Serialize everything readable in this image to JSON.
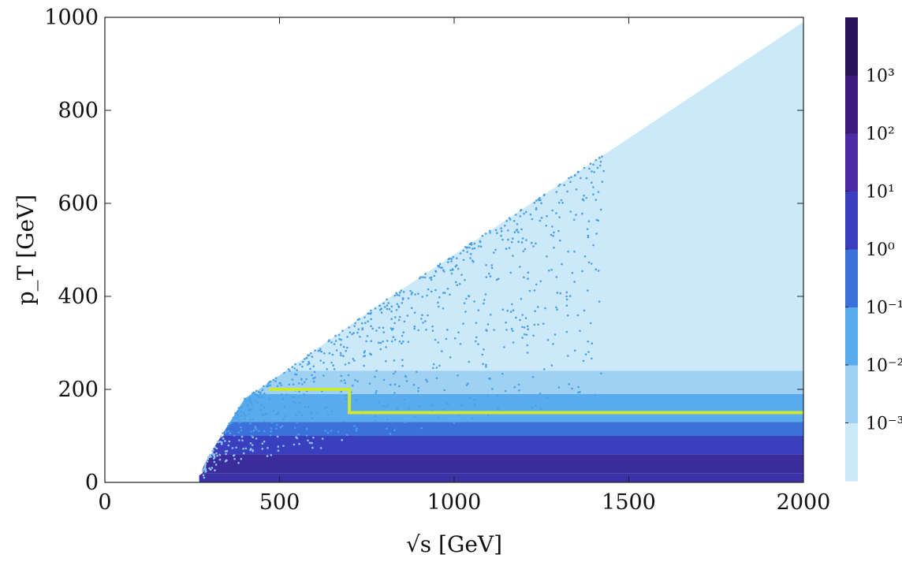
{
  "chart_data": {
    "type": "heatmap",
    "title": "",
    "xlabel": "√s [GeV]",
    "ylabel": "p_T [GeV]",
    "xlim": [
      0,
      2000
    ],
    "ylim": [
      0,
      1000
    ],
    "x_ticks": [
      0,
      500,
      1000,
      1500,
      2000
    ],
    "y_ticks": [
      0,
      200,
      400,
      600,
      800,
      1000
    ],
    "x_tick_labels": [
      "0",
      "500",
      "1000",
      "1500",
      "2000"
    ],
    "y_tick_labels": [
      "0",
      "200",
      "400",
      "600",
      "800",
      "1000"
    ],
    "kinematic_boundary": {
      "description_points": [
        [
          260,
          0
        ],
        [
          300,
          60
        ],
        [
          400,
          180
        ],
        [
          500,
          230
        ],
        [
          800,
          390
        ],
        [
          1000,
          490
        ],
        [
          1500,
          740
        ],
        [
          2000,
          990
        ]
      ]
    },
    "filled_bands": [
      {
        "level": "1e-3",
        "color": "#cbe9f8",
        "y_range": [
          240,
          990
        ]
      },
      {
        "level": "1e-2",
        "color": "#9fd1f2",
        "y_range": [
          190,
          240
        ]
      },
      {
        "level": "1e-1",
        "color": "#58aced",
        "y_range": [
          130,
          190
        ]
      },
      {
        "level": "1e0",
        "color": "#3c71dc",
        "y_range": [
          100,
          130
        ]
      },
      {
        "level": "1e1",
        "color": "#3a3fbd",
        "y_range": [
          60,
          100
        ]
      },
      {
        "level": "1e2",
        "color": "#3b2b9b",
        "y_range": [
          20,
          60
        ]
      },
      {
        "level": "1e3",
        "color": "#3a33a8",
        "y_range": [
          0,
          20
        ]
      }
    ],
    "selection_cut": {
      "color": "#cde832",
      "points": [
        [
          470,
          200
        ],
        [
          700,
          200
        ],
        [
          700,
          150
        ],
        [
          2000,
          150
        ]
      ]
    },
    "colorbar": {
      "scale": "log",
      "levels": [
        {
          "label": "10⁻³",
          "color": "#cbe9f8"
        },
        {
          "label": "10⁻²",
          "color": "#9fd1f2"
        },
        {
          "label": "10⁻¹",
          "color": "#58aced"
        },
        {
          "label": "10⁰",
          "color": "#3c71dc"
        },
        {
          "label": "10¹",
          "color": "#3a3fbd"
        },
        {
          "label": "10²",
          "color": "#4c2aa6"
        },
        {
          "label": "10³",
          "color": "#3b1b7e"
        }
      ],
      "band_colors_bottom_to_top": [
        "#cbe9f8",
        "#9fd1f2",
        "#58aced",
        "#3c71dc",
        "#3a3fbd",
        "#4c2aa6",
        "#3b1b7e",
        "#2a1258"
      ]
    }
  }
}
